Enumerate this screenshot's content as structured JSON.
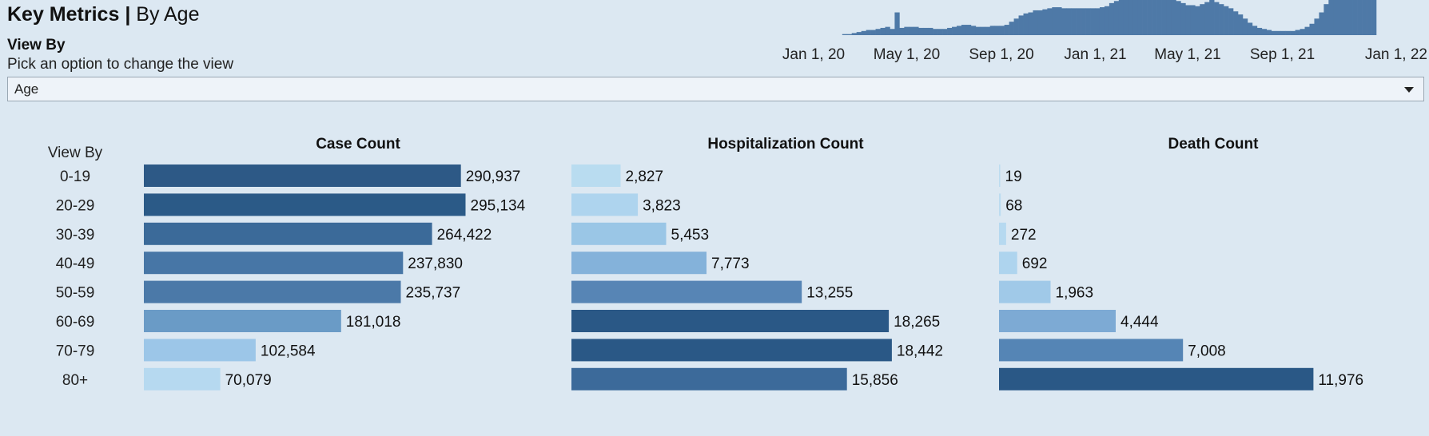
{
  "header": {
    "title_bold": "Key Metrics",
    "title_sep": "|",
    "title_rest": "By Age"
  },
  "view_by": {
    "label": "View By",
    "hint": "Pick an option to change the view",
    "selected": "Age",
    "dropdown_icon": "chevron-down-icon"
  },
  "chart_data": [
    {
      "type": "bar",
      "title": "",
      "note": "timeline sparkline of daily cases",
      "x_ticks": [
        "Jan 1, 20",
        "May 1, 20",
        "Sep 1, 20",
        "Jan 1, 21",
        "May 1, 21",
        "Sep 1, 21",
        "Jan 1, 22"
      ],
      "x_start": "2020-01-01",
      "x_end": "2022-01-01",
      "color": "#4e79a7",
      "values": [
        0,
        0,
        0,
        0,
        0,
        0,
        1,
        1,
        2,
        3,
        4,
        5,
        5,
        6,
        7,
        8,
        6,
        22,
        7,
        8,
        8,
        8,
        7,
        7,
        7,
        6,
        6,
        6,
        7,
        8,
        9,
        10,
        10,
        9,
        8,
        8,
        8,
        9,
        9,
        9,
        10,
        13,
        16,
        19,
        21,
        22,
        24,
        24,
        25,
        26,
        27,
        27,
        26,
        26,
        26,
        26,
        26,
        26,
        26,
        26,
        27,
        28,
        31,
        33,
        35,
        38,
        40,
        40,
        38,
        36,
        34,
        35,
        36,
        38,
        37,
        35,
        33,
        31,
        29,
        29,
        28,
        30,
        32,
        34,
        32,
        30,
        28,
        26,
        23,
        20,
        16,
        12,
        9,
        7,
        6,
        5,
        4,
        4,
        4,
        4,
        4,
        5,
        6,
        8,
        11,
        16,
        22,
        30,
        34,
        34,
        34,
        34,
        34,
        34,
        34,
        34,
        34,
        34
      ],
      "ymax": 34
    },
    {
      "type": "bar",
      "title": "Case Count",
      "xlabel": "",
      "ylabel": "View By",
      "categories": [
        "0-19",
        "20-29",
        "30-39",
        "40-49",
        "50-59",
        "60-69",
        "70-79",
        "80+"
      ],
      "values": [
        290937,
        295134,
        264422,
        237830,
        235737,
        181018,
        102584,
        70079
      ],
      "value_labels": [
        "290,937",
        "295,134",
        "264,422",
        "237,830",
        "235,737",
        "181,018",
        "102,584",
        "70,079"
      ],
      "xlim": [
        0,
        330000
      ],
      "colors": [
        "#2d5986",
        "#2b5a87",
        "#3b6a99",
        "#4776a6",
        "#4b79a8",
        "#6a9bc6",
        "#9cc6e8",
        "#b6d9f0"
      ]
    },
    {
      "type": "bar",
      "title": "Hospitalization Count",
      "xlabel": "",
      "ylabel": "",
      "categories": [
        "0-19",
        "20-29",
        "30-39",
        "40-49",
        "50-59",
        "60-69",
        "70-79",
        "80+"
      ],
      "values": [
        2827,
        3823,
        5453,
        7773,
        13255,
        18265,
        18442,
        15856
      ],
      "value_labels": [
        "2,827",
        "3,823",
        "5,453",
        "7,773",
        "13,255",
        "18,265",
        "18,442",
        "15,856"
      ],
      "xlim": [
        0,
        20700
      ],
      "colors": [
        "#b9dcf0",
        "#aed4ee",
        "#9ac6e6",
        "#84b2da",
        "#5785b5",
        "#2a5886",
        "#2a5886",
        "#3c6a9a"
      ]
    },
    {
      "type": "bar",
      "title": "Death Count",
      "xlabel": "",
      "ylabel": "",
      "categories": [
        "0-19",
        "20-29",
        "30-39",
        "40-49",
        "50-59",
        "60-69",
        "70-79",
        "80+"
      ],
      "values": [
        19,
        68,
        272,
        692,
        1963,
        4444,
        7008,
        11976
      ],
      "value_labels": [
        "19",
        "68",
        "272",
        "692",
        "1,963",
        "4,444",
        "7,008",
        "11,976"
      ],
      "xlim": [
        0,
        13700
      ],
      "colors": [
        "#bcdcf0",
        "#bcdcf0",
        "#b6d9f0",
        "#aed4ee",
        "#a0c9e8",
        "#7daad4",
        "#5585b5",
        "#2a5886"
      ]
    }
  ]
}
